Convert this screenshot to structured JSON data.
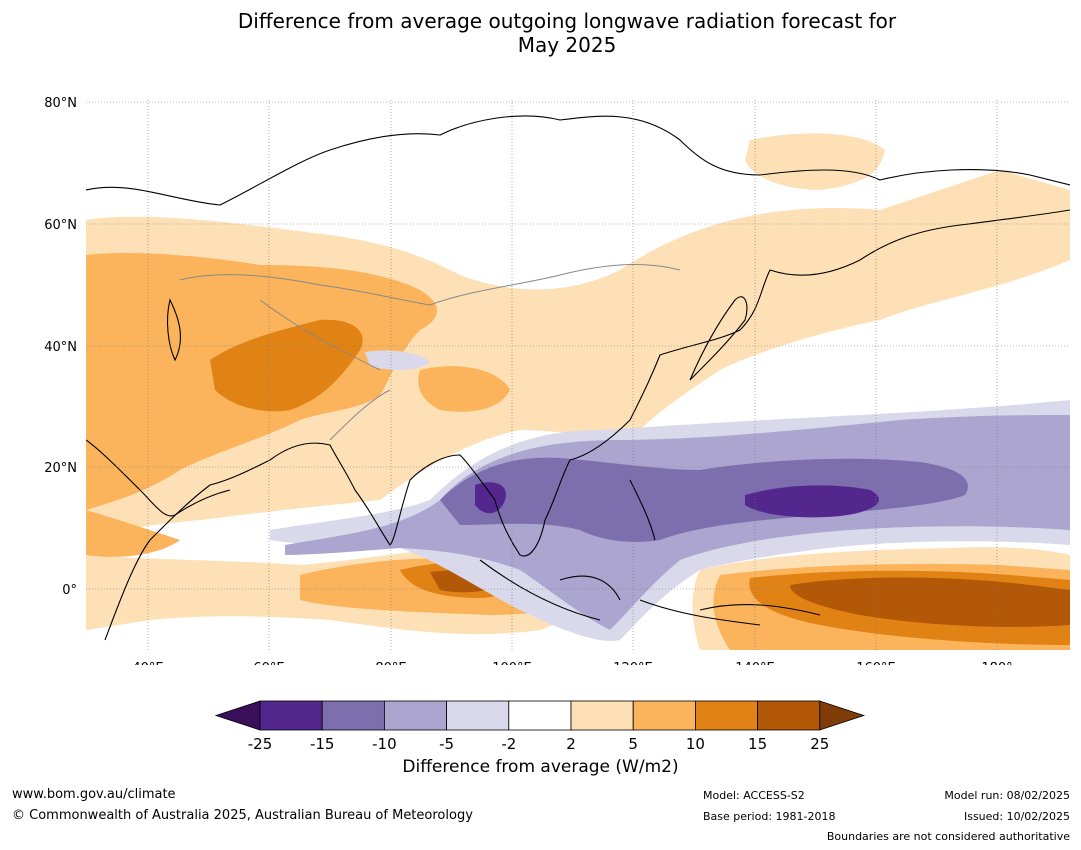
{
  "title": {
    "line1": "Difference from average outgoing longwave radiation forecast for",
    "line2": "May 2025"
  },
  "map": {
    "lat_labels": [
      "80°N",
      "60°N",
      "40°N",
      "20°N",
      "0°"
    ],
    "lon_labels": [
      "40°E",
      "60°E",
      "80°E",
      "100°E",
      "120°E",
      "140°E",
      "160°E",
      "180°"
    ],
    "palette": {
      "below_-25": "#3b0f5a",
      "-25_-15": "#54278f",
      "-15_-10": "#7d6fad",
      "-10_-5": "#aba5d0",
      "-5_-2": "#d9d9eb",
      "-2_2": "#ffffff",
      "2_5": "#fee0b6",
      "5_10": "#fbb45c",
      "10_15": "#e08214",
      "15_25": "#b35806",
      "above_25": "#7f3b08"
    }
  },
  "colorbar": {
    "ticks": [
      "-25",
      "-15",
      "-10",
      "-5",
      "-2",
      "2",
      "5",
      "10",
      "15",
      "25"
    ],
    "label": "Difference from average (W/m2)"
  },
  "footer": {
    "website": "www.bom.gov.au/climate",
    "copyright": "© Commonwealth of Australia 2025, Australian Bureau of Meteorology",
    "model": "Model: ACCESS-S2",
    "base_period": "Base period: 1981-2018",
    "model_run": "Model run: 08/02/2025",
    "issued": "Issued: 10/02/2025",
    "disclaimer": "Boundaries are not considered authoritative"
  }
}
